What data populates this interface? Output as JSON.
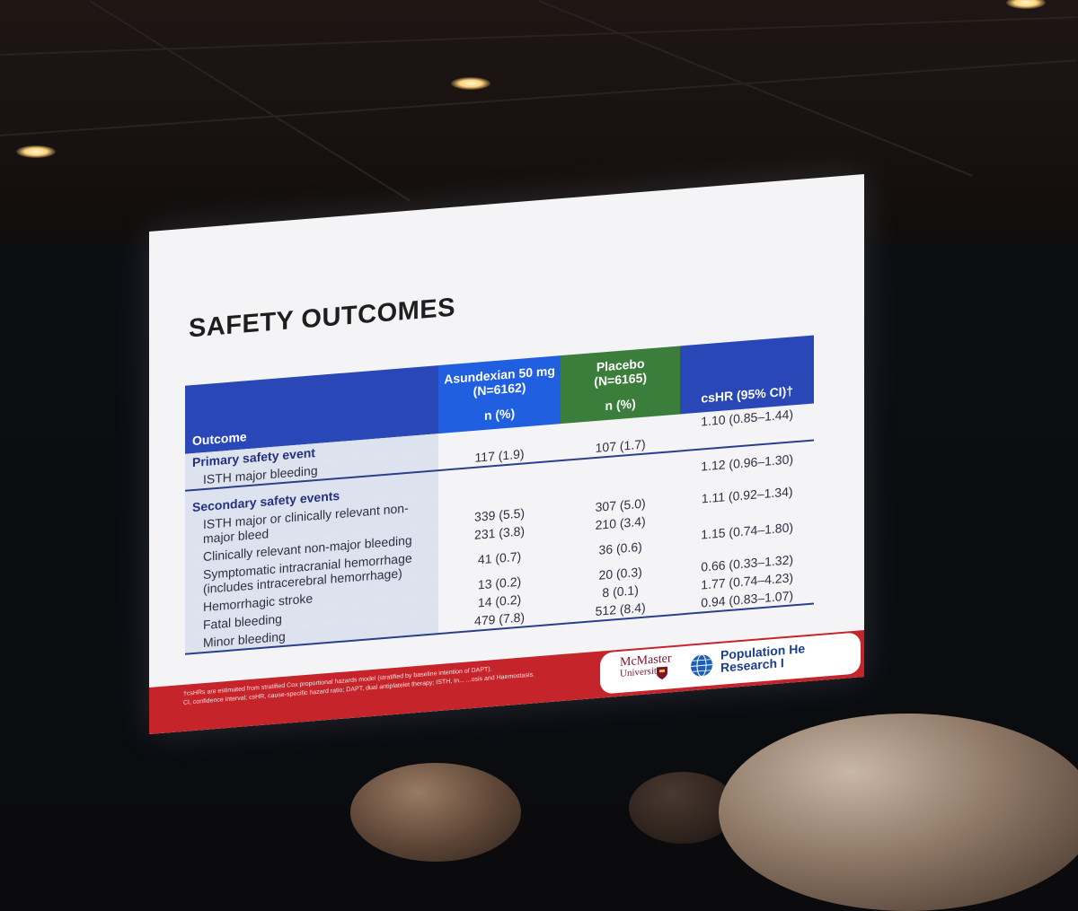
{
  "slide": {
    "title": "SAFETY OUTCOMES",
    "columns": {
      "outcome": "Outcome",
      "asundexian": {
        "name": "Asundexian 50 mg",
        "n": "(N=6162)",
        "unit": "n (%)",
        "color": "#1f5fe0"
      },
      "placebo": {
        "name": "Placebo",
        "n": "(N=6165)",
        "unit": "n (%)",
        "color": "#3b7d3a"
      },
      "hr": {
        "name": "csHR (95% CI)†"
      }
    },
    "groups": [
      {
        "label": "Primary safety event",
        "rows": [
          {
            "label": "ISTH major bleeding",
            "asundexian": "117 (1.9)",
            "placebo": "107 (1.7)",
            "hr": "1.10 (0.85–1.44)"
          }
        ]
      },
      {
        "label": "Secondary safety events",
        "rows": [
          {
            "label": "ISTH major or clinically relevant non-major bleed",
            "asundexian": "339 (5.5)",
            "placebo": "307 (5.0)",
            "hr": "1.12 (0.96–1.30)"
          },
          {
            "label": "Clinically relevant non-major bleeding",
            "asundexian": "231 (3.8)",
            "placebo": "210 (3.4)",
            "hr": "1.11 (0.92–1.34)"
          },
          {
            "label": "Symptomatic intracranial hemorrhage",
            "label2": "(includes intracerebral hemorrhage)",
            "asundexian": "41 (0.7)",
            "placebo": "36 (0.6)",
            "hr": "1.15 (0.74–1.80)"
          },
          {
            "label": "Hemorrhagic stroke",
            "asundexian": "13 (0.2)",
            "placebo": "20 (0.3)",
            "hr": "0.66 (0.33–1.32)"
          },
          {
            "label": "Fatal bleeding",
            "asundexian": "14 (0.2)",
            "placebo": "8 (0.1)",
            "hr": "1.77 (0.74–4.23)"
          },
          {
            "label": "Minor bleeding",
            "asundexian": "479 (7.8)",
            "placebo": "512 (8.4)",
            "hr": "0.94 (0.83–1.07)"
          }
        ]
      }
    ],
    "footnote_1": "†csHRs are estimated from stratified Cox proportional hazards model (stratified by baseline intention of DAPT).",
    "footnote_2": "CI, confidence interval; csHR, cause-specific hazard ratio; DAPT, dual antiplatelet therapy; ISTH, In...            ...osis and Haemostasis.",
    "logos": {
      "mcmaster_1": "McMaster",
      "mcmaster_2": "University",
      "phri_1": "Population He",
      "phri_2": "Research I"
    }
  }
}
